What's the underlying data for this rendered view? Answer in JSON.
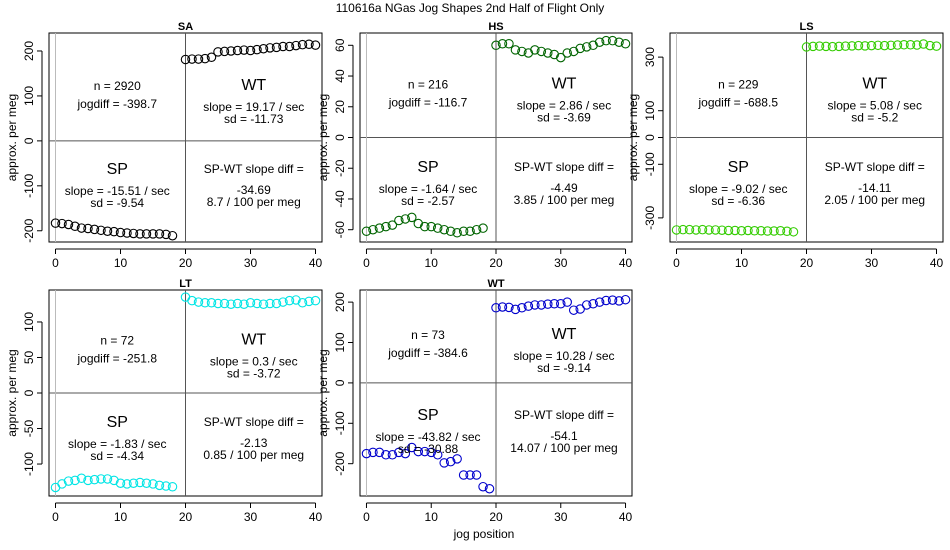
{
  "figure": {
    "title": "110616a   NGas Jog Shapes 2nd Half of Flight Only",
    "xlabel": "jog position",
    "ylabel": "approx. per meg"
  },
  "chart_data": [
    {
      "type": "scatter",
      "title": "SA",
      "color": "#000000",
      "xlim": [
        -1,
        41
      ],
      "ylim": [
        -225,
        240
      ],
      "xticks": [
        0,
        10,
        20,
        30,
        40
      ],
      "yticks": [
        -200,
        -100,
        0,
        100,
        200
      ],
      "sp_values": [
        -183,
        -184,
        -186,
        -190,
        -194,
        -195,
        -197,
        -199,
        -201,
        -202,
        -204,
        -205,
        -206,
        -207,
        -207,
        -207,
        -207,
        -208,
        -211
      ],
      "wt_values": [
        181,
        182,
        182,
        183,
        186,
        198,
        199,
        200,
        201,
        202,
        201,
        203,
        205,
        207,
        208,
        210,
        210,
        212,
        214,
        215,
        213
      ],
      "annotations": {
        "n": "n = 2920",
        "jogdiff": "jogdiff = -398.7",
        "sp_label": "SP",
        "sp_slope": "slope = -15.51 / sec",
        "sp_sd": "sd = -9.54",
        "wt_label": "WT",
        "wt_slope": "slope = 19.17 / sec",
        "wt_sd": "sd = -11.73",
        "diff_label": "SP-WT slope diff =",
        "diff_value": "-34.69",
        "per_meg": "8.7 / 100 per meg"
      }
    },
    {
      "type": "scatter",
      "title": "HS",
      "color": "#006400",
      "xlim": [
        -1,
        41
      ],
      "ylim": [
        -68,
        68
      ],
      "xticks": [
        0,
        10,
        20,
        30,
        40
      ],
      "yticks": [
        -60,
        -40,
        -20,
        0,
        20,
        40,
        60
      ],
      "sp_values": [
        -61,
        -60,
        -59,
        -58,
        -57,
        -54,
        -53,
        -52,
        -56,
        -58,
        -58,
        -59,
        -60,
        -61,
        -62,
        -61,
        -61,
        -60,
        -59
      ],
      "wt_values": [
        60,
        61,
        61,
        57,
        56,
        55,
        57,
        56,
        55,
        54,
        52,
        55,
        56,
        58,
        59,
        60,
        62,
        63,
        63,
        62,
        61
      ],
      "annotations": {
        "n": "n = 216",
        "jogdiff": "jogdiff = -116.7",
        "sp_label": "SP",
        "sp_slope": "slope = -1.64 / sec",
        "sp_sd": "sd = -2.57",
        "wt_label": "WT",
        "wt_slope": "slope = 2.86 / sec",
        "wt_sd": "sd = -3.69",
        "diff_label": "SP-WT slope diff =",
        "diff_value": "-4.49",
        "per_meg": "3.85 / 100 per meg"
      }
    },
    {
      "type": "scatter",
      "title": "LS",
      "color": "#33cc00",
      "xlim": [
        -1,
        41
      ],
      "ylim": [
        -390,
        390
      ],
      "xticks": [
        0,
        10,
        20,
        30,
        40
      ],
      "yticks": [
        -300,
        -100,
        0,
        100,
        300
      ],
      "sp_values": [
        -345,
        -344,
        -344,
        -345,
        -344,
        -345,
        -345,
        -346,
        -347,
        -347,
        -348,
        -347,
        -348,
        -348,
        -349,
        -349,
        -348,
        -350,
        -352
      ],
      "wt_values": [
        338,
        340,
        341,
        340,
        339,
        340,
        341,
        342,
        343,
        342,
        343,
        344,
        343,
        344,
        345,
        346,
        346,
        345,
        349,
        343,
        341
      ],
      "annotations": {
        "n": "n = 229",
        "jogdiff": "jogdiff = -688.5",
        "sp_label": "SP",
        "sp_slope": "slope = -9.02 / sec",
        "sp_sd": "sd = -6.36",
        "wt_label": "WT",
        "wt_slope": "slope = 5.08 / sec",
        "wt_sd": "sd = -5.2",
        "diff_label": "SP-WT slope diff =",
        "diff_value": "-14.11",
        "per_meg": "2.05 / 100 per meg"
      }
    },
    {
      "type": "scatter",
      "title": "LT",
      "color": "#00e5e5",
      "xlim": [
        -1,
        41
      ],
      "ylim": [
        -145,
        145
      ],
      "xticks": [
        0,
        10,
        20,
        30,
        40
      ],
      "yticks": [
        -100,
        -50,
        0,
        50,
        100
      ],
      "sp_values": [
        -133,
        -128,
        -124,
        -123,
        -120,
        -123,
        -122,
        -121,
        -121,
        -123,
        -127,
        -128,
        -127,
        -126,
        -127,
        -128,
        -130,
        -131,
        -132
      ],
      "wt_values": [
        135,
        130,
        128,
        127,
        127,
        126,
        126,
        125,
        126,
        125,
        127,
        126,
        125,
        126,
        126,
        128,
        130,
        131,
        127,
        129,
        130
      ],
      "annotations": {
        "n": "n = 72",
        "jogdiff": "jogdiff = -251.8",
        "sp_label": "SP",
        "sp_slope": "slope = -1.83 / sec",
        "sp_sd": "sd = -4.34",
        "wt_label": "WT",
        "wt_slope": "slope = 0.3 / sec",
        "wt_sd": "sd = -3.72",
        "diff_label": "SP-WT slope diff =",
        "diff_value": "-2.13",
        "per_meg": "0.85 / 100 per meg"
      }
    },
    {
      "type": "scatter",
      "title": "WT",
      "color": "#0000cc",
      "xlim": [
        -1,
        41
      ],
      "ylim": [
        -280,
        230
      ],
      "xticks": [
        0,
        10,
        20,
        30,
        40
      ],
      "yticks": [
        -200,
        -100,
        0,
        100,
        200
      ],
      "sp_values": [
        -175,
        -172,
        -172,
        -178,
        -178,
        -172,
        -175,
        -160,
        -170,
        -170,
        -172,
        -178,
        -198,
        -195,
        -188,
        -228,
        -228,
        -228,
        -257,
        -262
      ],
      "wt_values": [
        186,
        188,
        187,
        182,
        186,
        190,
        193,
        193,
        195,
        196,
        196,
        200,
        180,
        183,
        193,
        196,
        200,
        204,
        205,
        203,
        206
      ],
      "annotations": {
        "n": "n = 73",
        "jogdiff": "jogdiff = -384.6",
        "sp_label": "SP",
        "sp_slope": "slope = -43.82 / sec",
        "sp_sd": "sd = -30.88",
        "wt_label": "WT",
        "wt_slope": "slope = 10.28 / sec",
        "wt_sd": "sd = -9.14",
        "diff_label": "SP-WT slope diff =",
        "diff_value": "-54.1",
        "per_meg": "14.07 / 100 per meg"
      }
    }
  ]
}
